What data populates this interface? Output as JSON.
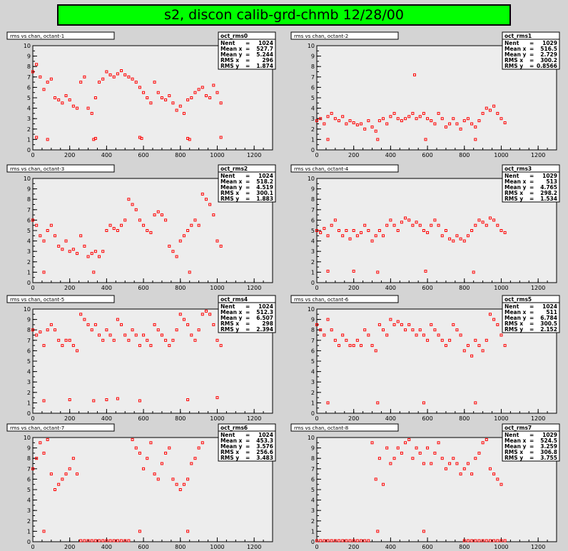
{
  "page_title": "s2, discon calib-grd-chmb 12/28/00",
  "marker_color": "#ff0000",
  "chart_data": [
    {
      "type": "scatter",
      "title": "rms vs chan, octant-1",
      "xlim": [
        0,
        1300
      ],
      "ylim": [
        0,
        10
      ],
      "xticks": [
        0,
        200,
        400,
        600,
        800,
        1000,
        1200
      ],
      "yticks": [
        0,
        1,
        2,
        3,
        4,
        5,
        6,
        7,
        8,
        9,
        10
      ],
      "stats": {
        "name": "oct_rms0",
        "rows": [
          [
            "Nent",
            "1024"
          ],
          [
            "Mean x",
            "527.7"
          ],
          [
            "Mean y",
            "5.244"
          ],
          [
            "RMS x",
            "296"
          ],
          [
            "RMS y",
            "1.874"
          ]
        ]
      },
      "x": [
        0,
        20,
        40,
        60,
        80,
        100,
        120,
        140,
        160,
        180,
        200,
        220,
        240,
        260,
        280,
        300,
        320,
        340,
        360,
        380,
        400,
        420,
        440,
        460,
        480,
        500,
        520,
        540,
        560,
        580,
        600,
        620,
        640,
        660,
        680,
        700,
        720,
        740,
        760,
        780,
        800,
        820,
        840,
        860,
        880,
        900,
        920,
        940,
        960,
        980,
        1000,
        1020,
        20,
        80,
        330,
        340,
        580,
        590,
        840,
        850,
        1020
      ],
      "y": [
        7.5,
        8.2,
        7.0,
        5.8,
        6.5,
        6.8,
        5.0,
        4.8,
        4.5,
        5.2,
        4.8,
        4.2,
        4.0,
        6.5,
        7.0,
        4.0,
        3.5,
        5.0,
        6.5,
        6.8,
        7.5,
        7.2,
        7.0,
        7.3,
        7.6,
        7.2,
        7.0,
        6.8,
        6.5,
        6.0,
        5.5,
        5.0,
        4.5,
        6.5,
        5.5,
        5.0,
        4.8,
        5.2,
        4.5,
        3.8,
        4.2,
        3.5,
        4.8,
        5.0,
        5.5,
        5.8,
        6.0,
        5.2,
        5.0,
        6.2,
        5.5,
        4.5,
        1.2,
        1.0,
        1.0,
        1.1,
        1.2,
        1.1,
        1.1,
        1.0,
        1.2
      ]
    },
    {
      "type": "scatter",
      "title": "rms vs chan, octant-2",
      "xlim": [
        0,
        1300
      ],
      "ylim": [
        0,
        10
      ],
      "xticks": [
        0,
        200,
        400,
        600,
        800,
        1000,
        1200
      ],
      "yticks": [
        0,
        1,
        2,
        3,
        4,
        5,
        6,
        7,
        8,
        9,
        10
      ],
      "stats": {
        "name": "oct_rms1",
        "rows": [
          [
            "Nent",
            "1029"
          ],
          [
            "Mean x",
            "516.5"
          ],
          [
            "Mean y",
            "2.729"
          ],
          [
            "RMS x",
            "300.2"
          ],
          [
            "RMS y",
            "0.8566"
          ]
        ]
      },
      "x": [
        0,
        20,
        40,
        60,
        80,
        100,
        120,
        140,
        160,
        180,
        200,
        220,
        240,
        260,
        280,
        300,
        320,
        340,
        360,
        380,
        400,
        420,
        440,
        460,
        480,
        500,
        520,
        540,
        560,
        580,
        600,
        620,
        640,
        660,
        680,
        700,
        720,
        740,
        760,
        780,
        800,
        820,
        840,
        860,
        880,
        900,
        920,
        940,
        960,
        980,
        1000,
        1020,
        530,
        60,
        330,
        590,
        860
      ],
      "y": [
        2.8,
        3.0,
        2.5,
        3.2,
        3.5,
        3.0,
        2.8,
        3.2,
        2.5,
        2.8,
        2.6,
        2.4,
        2.5,
        2.0,
        2.8,
        2.2,
        1.8,
        2.8,
        3.0,
        2.5,
        3.2,
        3.5,
        3.0,
        2.8,
        3.0,
        3.2,
        3.5,
        3.0,
        3.2,
        3.5,
        3.0,
        2.8,
        2.5,
        3.5,
        3.0,
        2.2,
        2.5,
        3.0,
        2.5,
        2.0,
        2.8,
        3.0,
        2.5,
        2.2,
        2.8,
        3.5,
        4.0,
        3.8,
        4.2,
        3.5,
        3.0,
        2.6,
        7.2,
        1.0,
        1.0,
        1.0,
        1.0
      ]
    },
    {
      "type": "scatter",
      "title": "rms vs chan, octant-3",
      "xlim": [
        0,
        1300
      ],
      "ylim": [
        0,
        10
      ],
      "xticks": [
        0,
        200,
        400,
        600,
        800,
        1000,
        1200
      ],
      "yticks": [
        0,
        1,
        2,
        3,
        4,
        5,
        6,
        7,
        8,
        9,
        10
      ],
      "stats": {
        "name": "oct_rms2",
        "rows": [
          [
            "Nent",
            "1024"
          ],
          [
            "Mean x",
            "518.2"
          ],
          [
            "Mean y",
            "4.519"
          ],
          [
            "RMS x",
            "300.1"
          ],
          [
            "RMS y",
            "1.883"
          ]
        ]
      },
      "x": [
        0,
        20,
        40,
        60,
        80,
        100,
        120,
        140,
        160,
        180,
        200,
        220,
        240,
        260,
        280,
        300,
        320,
        340,
        360,
        380,
        400,
        420,
        440,
        460,
        480,
        500,
        520,
        540,
        560,
        580,
        600,
        620,
        640,
        660,
        680,
        700,
        720,
        740,
        760,
        780,
        800,
        820,
        840,
        860,
        880,
        900,
        920,
        940,
        960,
        980,
        1000,
        1020,
        60,
        330,
        850
      ],
      "y": [
        6.0,
        5.5,
        4.5,
        4.0,
        5.0,
        5.5,
        4.5,
        3.5,
        3.2,
        4.0,
        3.0,
        3.2,
        2.8,
        4.5,
        3.5,
        2.5,
        2.8,
        3.0,
        2.5,
        3.0,
        5.0,
        5.5,
        5.2,
        5.0,
        5.5,
        6.0,
        8.0,
        7.5,
        7.0,
        6.0,
        5.5,
        5.0,
        4.8,
        6.5,
        6.8,
        6.5,
        6.0,
        3.5,
        3.0,
        2.5,
        4.0,
        4.5,
        5.0,
        5.5,
        6.0,
        5.5,
        8.5,
        8.0,
        7.5,
        6.5,
        4.0,
        3.5,
        1.0,
        1.0,
        1.0
      ]
    },
    {
      "type": "scatter",
      "title": "rms vs chan, octant-4",
      "xlim": [
        0,
        1300
      ],
      "ylim": [
        0,
        10
      ],
      "xticks": [
        0,
        200,
        400,
        600,
        800,
        1000,
        1200
      ],
      "yticks": [
        0,
        1,
        2,
        3,
        4,
        5,
        6,
        7,
        8,
        9,
        10
      ],
      "stats": {
        "name": "oct_rms3",
        "rows": [
          [
            "Nent",
            "1029"
          ],
          [
            "Mean x",
            "513"
          ],
          [
            "Mean y",
            "4.765"
          ],
          [
            "RMS x",
            "298.2"
          ],
          [
            "RMS y",
            "1.534"
          ]
        ]
      },
      "x": [
        0,
        20,
        40,
        60,
        80,
        100,
        120,
        140,
        160,
        180,
        200,
        220,
        240,
        260,
        280,
        300,
        320,
        340,
        360,
        380,
        400,
        420,
        440,
        460,
        480,
        500,
        520,
        540,
        560,
        580,
        600,
        620,
        640,
        660,
        680,
        700,
        720,
        740,
        760,
        780,
        800,
        820,
        840,
        860,
        880,
        900,
        920,
        940,
        960,
        980,
        1000,
        1020,
        60,
        200,
        330,
        590,
        850
      ],
      "y": [
        5.0,
        4.8,
        5.2,
        4.5,
        5.5,
        6.0,
        5.0,
        4.5,
        5.0,
        4.2,
        5.0,
        4.5,
        4.8,
        5.5,
        5.0,
        4.0,
        4.5,
        5.0,
        4.5,
        5.5,
        6.0,
        5.5,
        5.0,
        5.8,
        6.2,
        6.0,
        5.5,
        5.8,
        5.5,
        5.0,
        4.8,
        5.5,
        6.0,
        5.5,
        4.5,
        5.0,
        4.2,
        4.0,
        4.5,
        4.2,
        4.0,
        4.5,
        5.0,
        5.5,
        6.0,
        5.8,
        5.5,
        6.2,
        6.0,
        5.5,
        5.0,
        4.8,
        1.1,
        1.1,
        1.0,
        1.1,
        1.0
      ]
    },
    {
      "type": "scatter",
      "title": "rms vs chan, octant-5",
      "xlim": [
        0,
        1300
      ],
      "ylim": [
        0,
        10
      ],
      "xticks": [
        0,
        200,
        400,
        600,
        800,
        1000,
        1200
      ],
      "yticks": [
        0,
        1,
        2,
        3,
        4,
        5,
        6,
        7,
        8,
        9,
        10
      ],
      "stats": {
        "name": "oct_rms4",
        "rows": [
          [
            "Nent",
            "1024"
          ],
          [
            "Mean x",
            "512.3"
          ],
          [
            "Mean y",
            "6.507"
          ],
          [
            "RMS x",
            "298"
          ],
          [
            "RMS y",
            "2.394"
          ]
        ]
      },
      "x": [
        0,
        20,
        40,
        60,
        80,
        100,
        120,
        140,
        160,
        180,
        200,
        220,
        240,
        260,
        280,
        300,
        320,
        340,
        360,
        380,
        400,
        420,
        440,
        460,
        480,
        500,
        520,
        540,
        560,
        580,
        600,
        620,
        640,
        660,
        680,
        700,
        720,
        740,
        760,
        780,
        800,
        820,
        840,
        860,
        880,
        900,
        920,
        940,
        960,
        980,
        1000,
        1020,
        60,
        200,
        330,
        400,
        460,
        580,
        840,
        1000
      ],
      "y": [
        8.0,
        7.5,
        7.8,
        6.5,
        8.0,
        8.5,
        8.0,
        7.0,
        6.5,
        7.0,
        7.0,
        6.5,
        6.0,
        9.5,
        9.0,
        8.5,
        8.0,
        8.5,
        7.5,
        7.0,
        8.0,
        7.5,
        7.0,
        9.0,
        8.5,
        7.5,
        7.0,
        8.0,
        7.5,
        6.5,
        7.5,
        7.0,
        6.5,
        8.5,
        8.0,
        7.5,
        7.0,
        6.5,
        7.0,
        8.0,
        9.5,
        9.0,
        8.5,
        7.5,
        7.0,
        8.0,
        9.5,
        9.8,
        9.5,
        8.5,
        7.0,
        6.5,
        1.2,
        1.3,
        1.2,
        1.3,
        1.4,
        1.2,
        1.3,
        1.5
      ]
    },
    {
      "type": "scatter",
      "title": "rms vs chan, octant-6",
      "xlim": [
        0,
        1300
      ],
      "ylim": [
        0,
        10
      ],
      "xticks": [
        0,
        200,
        400,
        600,
        800,
        1000,
        1200
      ],
      "yticks": [
        0,
        1,
        2,
        3,
        4,
        5,
        6,
        7,
        8,
        9,
        10
      ],
      "stats": {
        "name": "oct_rms5",
        "rows": [
          [
            "Nent",
            "1024"
          ],
          [
            "Mean x",
            "511"
          ],
          [
            "Mean y",
            "6.784"
          ],
          [
            "RMS x",
            "300.5"
          ],
          [
            "RMS y",
            "2.152"
          ]
        ]
      },
      "x": [
        0,
        20,
        40,
        60,
        80,
        100,
        120,
        140,
        160,
        180,
        200,
        220,
        240,
        260,
        280,
        300,
        320,
        340,
        360,
        380,
        400,
        420,
        440,
        460,
        480,
        500,
        520,
        540,
        560,
        580,
        600,
        620,
        640,
        660,
        680,
        700,
        720,
        740,
        760,
        780,
        800,
        820,
        840,
        860,
        880,
        900,
        920,
        940,
        960,
        980,
        1000,
        1020,
        60,
        330,
        580,
        860
      ],
      "y": [
        8.5,
        8.0,
        7.5,
        9.0,
        8.0,
        7.0,
        6.5,
        7.5,
        7.0,
        6.5,
        6.5,
        7.0,
        6.5,
        8.0,
        7.5,
        6.5,
        6.0,
        8.5,
        8.0,
        7.5,
        9.0,
        8.5,
        8.8,
        8.5,
        8.0,
        8.5,
        8.0,
        7.5,
        8.0,
        7.5,
        7.0,
        8.5,
        8.0,
        7.5,
        7.0,
        6.5,
        7.0,
        8.5,
        8.0,
        7.5,
        6.0,
        6.5,
        5.5,
        7.0,
        6.5,
        6.0,
        7.0,
        9.5,
        9.0,
        8.5,
        7.5,
        6.5,
        1.0,
        1.0,
        1.0,
        1.0
      ]
    },
    {
      "type": "scatter",
      "title": "rms vs chan, octant-7",
      "xlim": [
        0,
        1300
      ],
      "ylim": [
        0,
        10
      ],
      "xticks": [
        0,
        200,
        400,
        600,
        800,
        1000,
        1200
      ],
      "yticks": [
        0,
        1,
        2,
        3,
        4,
        5,
        6,
        7,
        8,
        9,
        10
      ],
      "stats": {
        "name": "oct_rms6",
        "rows": [
          [
            "Nent",
            "1024"
          ],
          [
            "Mean x",
            "453.3"
          ],
          [
            "Mean y",
            "3.576"
          ],
          [
            "RMS x",
            "256.6"
          ],
          [
            "RMS y",
            "3.483"
          ]
        ]
      },
      "x": [
        0,
        20,
        40,
        60,
        80,
        100,
        120,
        140,
        160,
        180,
        200,
        220,
        240,
        540,
        560,
        580,
        600,
        620,
        640,
        660,
        680,
        700,
        720,
        740,
        760,
        780,
        800,
        820,
        840,
        860,
        880,
        900,
        920,
        60,
        580,
        840,
        260,
        280,
        300,
        320,
        340,
        360,
        380,
        400,
        420,
        440,
        460,
        480,
        500,
        520
      ],
      "y": [
        7.0,
        8.0,
        9.5,
        8.5,
        9.8,
        6.5,
        5.0,
        5.5,
        6.0,
        6.5,
        7.0,
        8.0,
        6.5,
        9.8,
        9.0,
        8.5,
        7.0,
        8.0,
        9.5,
        6.5,
        6.0,
        7.5,
        8.5,
        9.0,
        6.0,
        5.5,
        5.0,
        5.5,
        6.0,
        7.5,
        8.0,
        9.0,
        9.5,
        1.0,
        1.0,
        1.0,
        0.1,
        0.1,
        0.1,
        0.1,
        0.1,
        0.1,
        0.1,
        0.1,
        0.1,
        0.1,
        0.1,
        0.1,
        0.1,
        0.1
      ]
    },
    {
      "type": "scatter",
      "title": "rms vs chan, octant-8",
      "xlim": [
        0,
        1300
      ],
      "ylim": [
        0,
        10
      ],
      "xticks": [
        0,
        200,
        400,
        600,
        800,
        1000,
        1200
      ],
      "yticks": [
        0,
        1,
        2,
        3,
        4,
        5,
        6,
        7,
        8,
        9,
        10
      ],
      "stats": {
        "name": "oct_rms7",
        "rows": [
          [
            "Nent",
            "1029"
          ],
          [
            "Mean x",
            "524.5"
          ],
          [
            "Mean y",
            "3.259"
          ],
          [
            "RMS x",
            "306.8"
          ],
          [
            "RMS y",
            "3.755"
          ]
        ]
      },
      "x": [
        300,
        320,
        340,
        360,
        380,
        400,
        420,
        440,
        460,
        480,
        500,
        520,
        540,
        560,
        580,
        600,
        620,
        640,
        660,
        680,
        700,
        720,
        740,
        760,
        780,
        800,
        820,
        840,
        860,
        880,
        900,
        920,
        940,
        960,
        980,
        1000,
        330,
        580,
        0,
        20,
        40,
        60,
        80,
        100,
        120,
        140,
        160,
        180,
        200,
        220,
        240,
        260,
        280,
        800,
        820,
        840,
        860,
        880,
        900,
        920,
        940,
        960,
        980,
        1000,
        1020
      ],
      "y": [
        9.5,
        6.0,
        8.0,
        5.5,
        9.0,
        7.5,
        8.0,
        9.0,
        8.5,
        9.5,
        9.8,
        8.0,
        9.0,
        8.5,
        7.5,
        9.0,
        7.5,
        8.5,
        9.5,
        8.0,
        7.0,
        7.5,
        8.0,
        7.5,
        6.5,
        7.0,
        7.5,
        6.5,
        8.0,
        8.5,
        9.5,
        9.8,
        7.0,
        6.5,
        6.0,
        5.5,
        1.0,
        1.0,
        0.1,
        0.1,
        0.1,
        0.1,
        0.1,
        0.1,
        0.1,
        0.1,
        0.1,
        0.1,
        0.1,
        0.1,
        0.1,
        0.1,
        0.1,
        0.1,
        0.1,
        0.1,
        0.1,
        0.1,
        0.1,
        0.1,
        0.1,
        0.1,
        0.1,
        0.1,
        0.1
      ]
    }
  ]
}
